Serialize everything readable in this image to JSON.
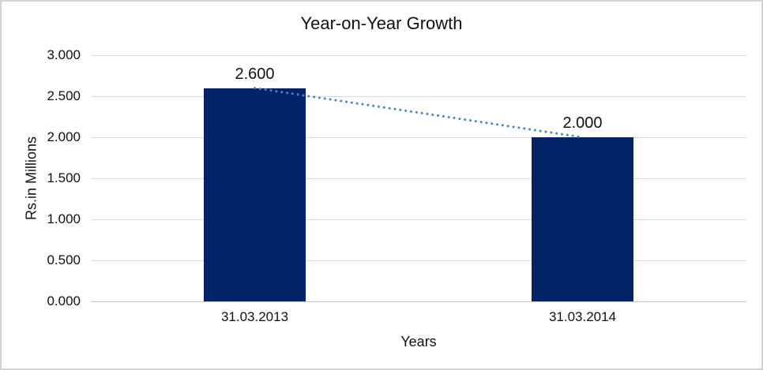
{
  "chart_data": {
    "type": "bar",
    "title": "Year-on-Year Growth",
    "xlabel": "Years",
    "ylabel": "Rs.in Millions",
    "categories": [
      "31.03.2013",
      "31.03.2014"
    ],
    "values": [
      2.6,
      2.0
    ],
    "data_labels": [
      "2.600",
      "2.000"
    ],
    "ytick_labels": [
      "0.000",
      "0.500",
      "1.000",
      "1.500",
      "2.000",
      "2.500",
      "3.000"
    ],
    "ylim": [
      0,
      3
    ],
    "grid": "horizontal",
    "legend": "none",
    "trendline": {
      "style": "dotted",
      "color": "#4a86c8",
      "from": 2.6,
      "to": 2.0
    },
    "colors": {
      "bar": "#032369",
      "gridline": "#d9d9d9",
      "axis_line": "#c6c6c6",
      "text": "#111111",
      "frame_border": "#d3d3d3",
      "background": "#ffffff"
    }
  }
}
